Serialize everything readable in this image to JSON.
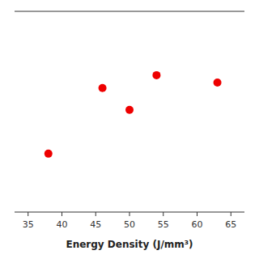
{
  "chart_data": {
    "type": "scatter",
    "xlabel": "Energy Density (J/mm³)",
    "x": [
      38,
      46,
      50,
      54,
      63
    ],
    "values": [
      3.2,
      6.8,
      5.6,
      7.5,
      7.1
    ],
    "color": "#ee0000",
    "xlim": [
      33,
      67
    ],
    "ylim": [
      0,
      11
    ],
    "xticks": [
      35,
      40,
      45,
      50,
      55,
      60,
      65
    ],
    "tick_labels": "x",
    "grid": false
  }
}
